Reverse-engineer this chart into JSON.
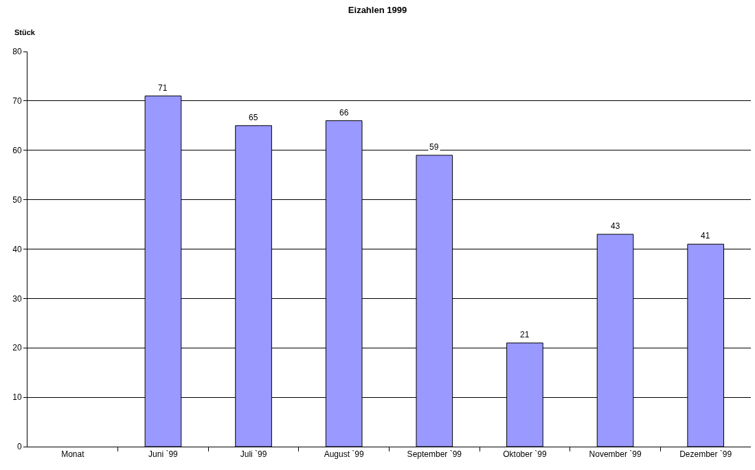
{
  "chart_data": {
    "type": "bar",
    "title": "Eizahlen 1999",
    "ylabel": "Stück",
    "categories": [
      "Monat",
      "Juni `99",
      "Juli `99",
      "August `99",
      "September `99",
      "Oktober `99",
      "November `99",
      "Dezember `99"
    ],
    "values": [
      null,
      71,
      65,
      66,
      59,
      21,
      43,
      41
    ],
    "color": "#9999ff",
    "ylim": [
      0,
      80
    ],
    "yticks": [
      0,
      10,
      20,
      30,
      40,
      50,
      60,
      70,
      80
    ],
    "grid": "y",
    "data_labels": true
  }
}
